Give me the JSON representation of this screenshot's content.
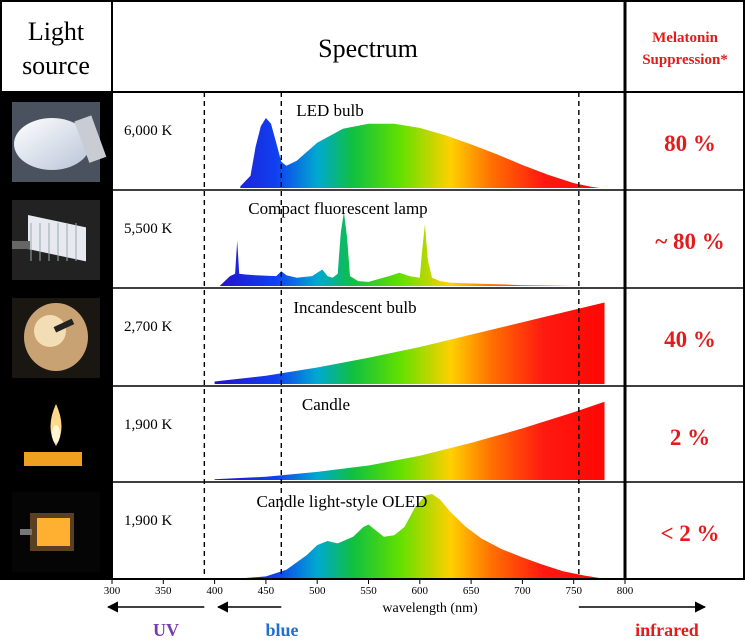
{
  "header": {
    "light_source": "Light source",
    "spectrum": "Spectrum",
    "melatonin": "Melatonin Suppression*"
  },
  "chart_data": {
    "type": "area",
    "xlabel": "wavelength (nm)",
    "x_ticks": [
      300,
      350,
      400,
      450,
      500,
      550,
      600,
      650,
      700,
      750,
      800
    ],
    "xlim": [
      300,
      800
    ],
    "reference_lines_nm": [
      390,
      465,
      755
    ],
    "bottom_labels": {
      "uv": "UV",
      "blue": "blue",
      "infrared": "infrared"
    },
    "series": [
      {
        "name": "LED bulb",
        "color_temperature": "6,000 K",
        "melatonin_suppression": "80 %",
        "icon": "led-bulb-icon",
        "x": [
          425,
          435,
          440,
          445,
          450,
          455,
          460,
          465,
          470,
          480,
          500,
          525,
          550,
          575,
          600,
          625,
          650,
          675,
          700,
          725,
          750,
          765,
          775
        ],
        "y": [
          0.02,
          0.15,
          0.5,
          0.75,
          0.85,
          0.78,
          0.55,
          0.32,
          0.27,
          0.33,
          0.55,
          0.72,
          0.78,
          0.78,
          0.73,
          0.64,
          0.53,
          0.41,
          0.28,
          0.16,
          0.06,
          0.02,
          0
        ]
      },
      {
        "name": "Compact fluorescent lamp",
        "color_temperature": "5,500 K",
        "melatonin_suppression": "~ 80 %",
        "icon": "compact-fluorescent-lamp-icon",
        "x": [
          405,
          415,
          420,
          422,
          424,
          430,
          440,
          460,
          465,
          470,
          480,
          495,
          505,
          510,
          515,
          520,
          523,
          526,
          529,
          532,
          540,
          550,
          570,
          580,
          590,
          600,
          602,
          605,
          608,
          612,
          620,
          630,
          650,
          680,
          700,
          750
        ],
        "y": [
          0,
          0.12,
          0.15,
          0.55,
          0.15,
          0.14,
          0.13,
          0.12,
          0.18,
          0.13,
          0.1,
          0.12,
          0.2,
          0.12,
          0.1,
          0.15,
          0.65,
          0.9,
          0.6,
          0.12,
          0.06,
          0.05,
          0.12,
          0.16,
          0.12,
          0.1,
          0.4,
          0.75,
          0.3,
          0.1,
          0.06,
          0.04,
          0.03,
          0.02,
          0.01,
          0
        ]
      },
      {
        "name": "Incandescent bulb",
        "color_temperature": "2,700 K",
        "melatonin_suppression": "40 %",
        "icon": "incandescent-bulb-icon",
        "x": [
          400,
          450,
          500,
          550,
          600,
          650,
          700,
          750,
          780
        ],
        "y": [
          0.03,
          0.1,
          0.2,
          0.32,
          0.45,
          0.6,
          0.75,
          0.9,
          0.99
        ]
      },
      {
        "name": "Candle",
        "color_temperature": "1,900 K",
        "melatonin_suppression": "2 %",
        "icon": "candle-icon",
        "x": [
          400,
          450,
          500,
          550,
          600,
          650,
          700,
          750,
          780
        ],
        "y": [
          0.01,
          0.04,
          0.1,
          0.18,
          0.3,
          0.46,
          0.64,
          0.84,
          0.97
        ]
      },
      {
        "name": "Candle light-style OLED",
        "color_temperature": "1,900 K",
        "melatonin_suppression": "< 2 %",
        "icon": "oled-panel-icon",
        "x": [
          430,
          450,
          470,
          490,
          500,
          510,
          520,
          535,
          545,
          550,
          555,
          565,
          575,
          585,
          595,
          605,
          612,
          620,
          630,
          645,
          660,
          680,
          700,
          720,
          740,
          760,
          775
        ],
        "y": [
          0,
          0.02,
          0.1,
          0.28,
          0.4,
          0.45,
          0.42,
          0.5,
          0.62,
          0.65,
          0.6,
          0.5,
          0.52,
          0.62,
          0.85,
          1.0,
          1.02,
          0.95,
          0.8,
          0.62,
          0.48,
          0.35,
          0.25,
          0.16,
          0.08,
          0.03,
          0
        ]
      }
    ]
  }
}
